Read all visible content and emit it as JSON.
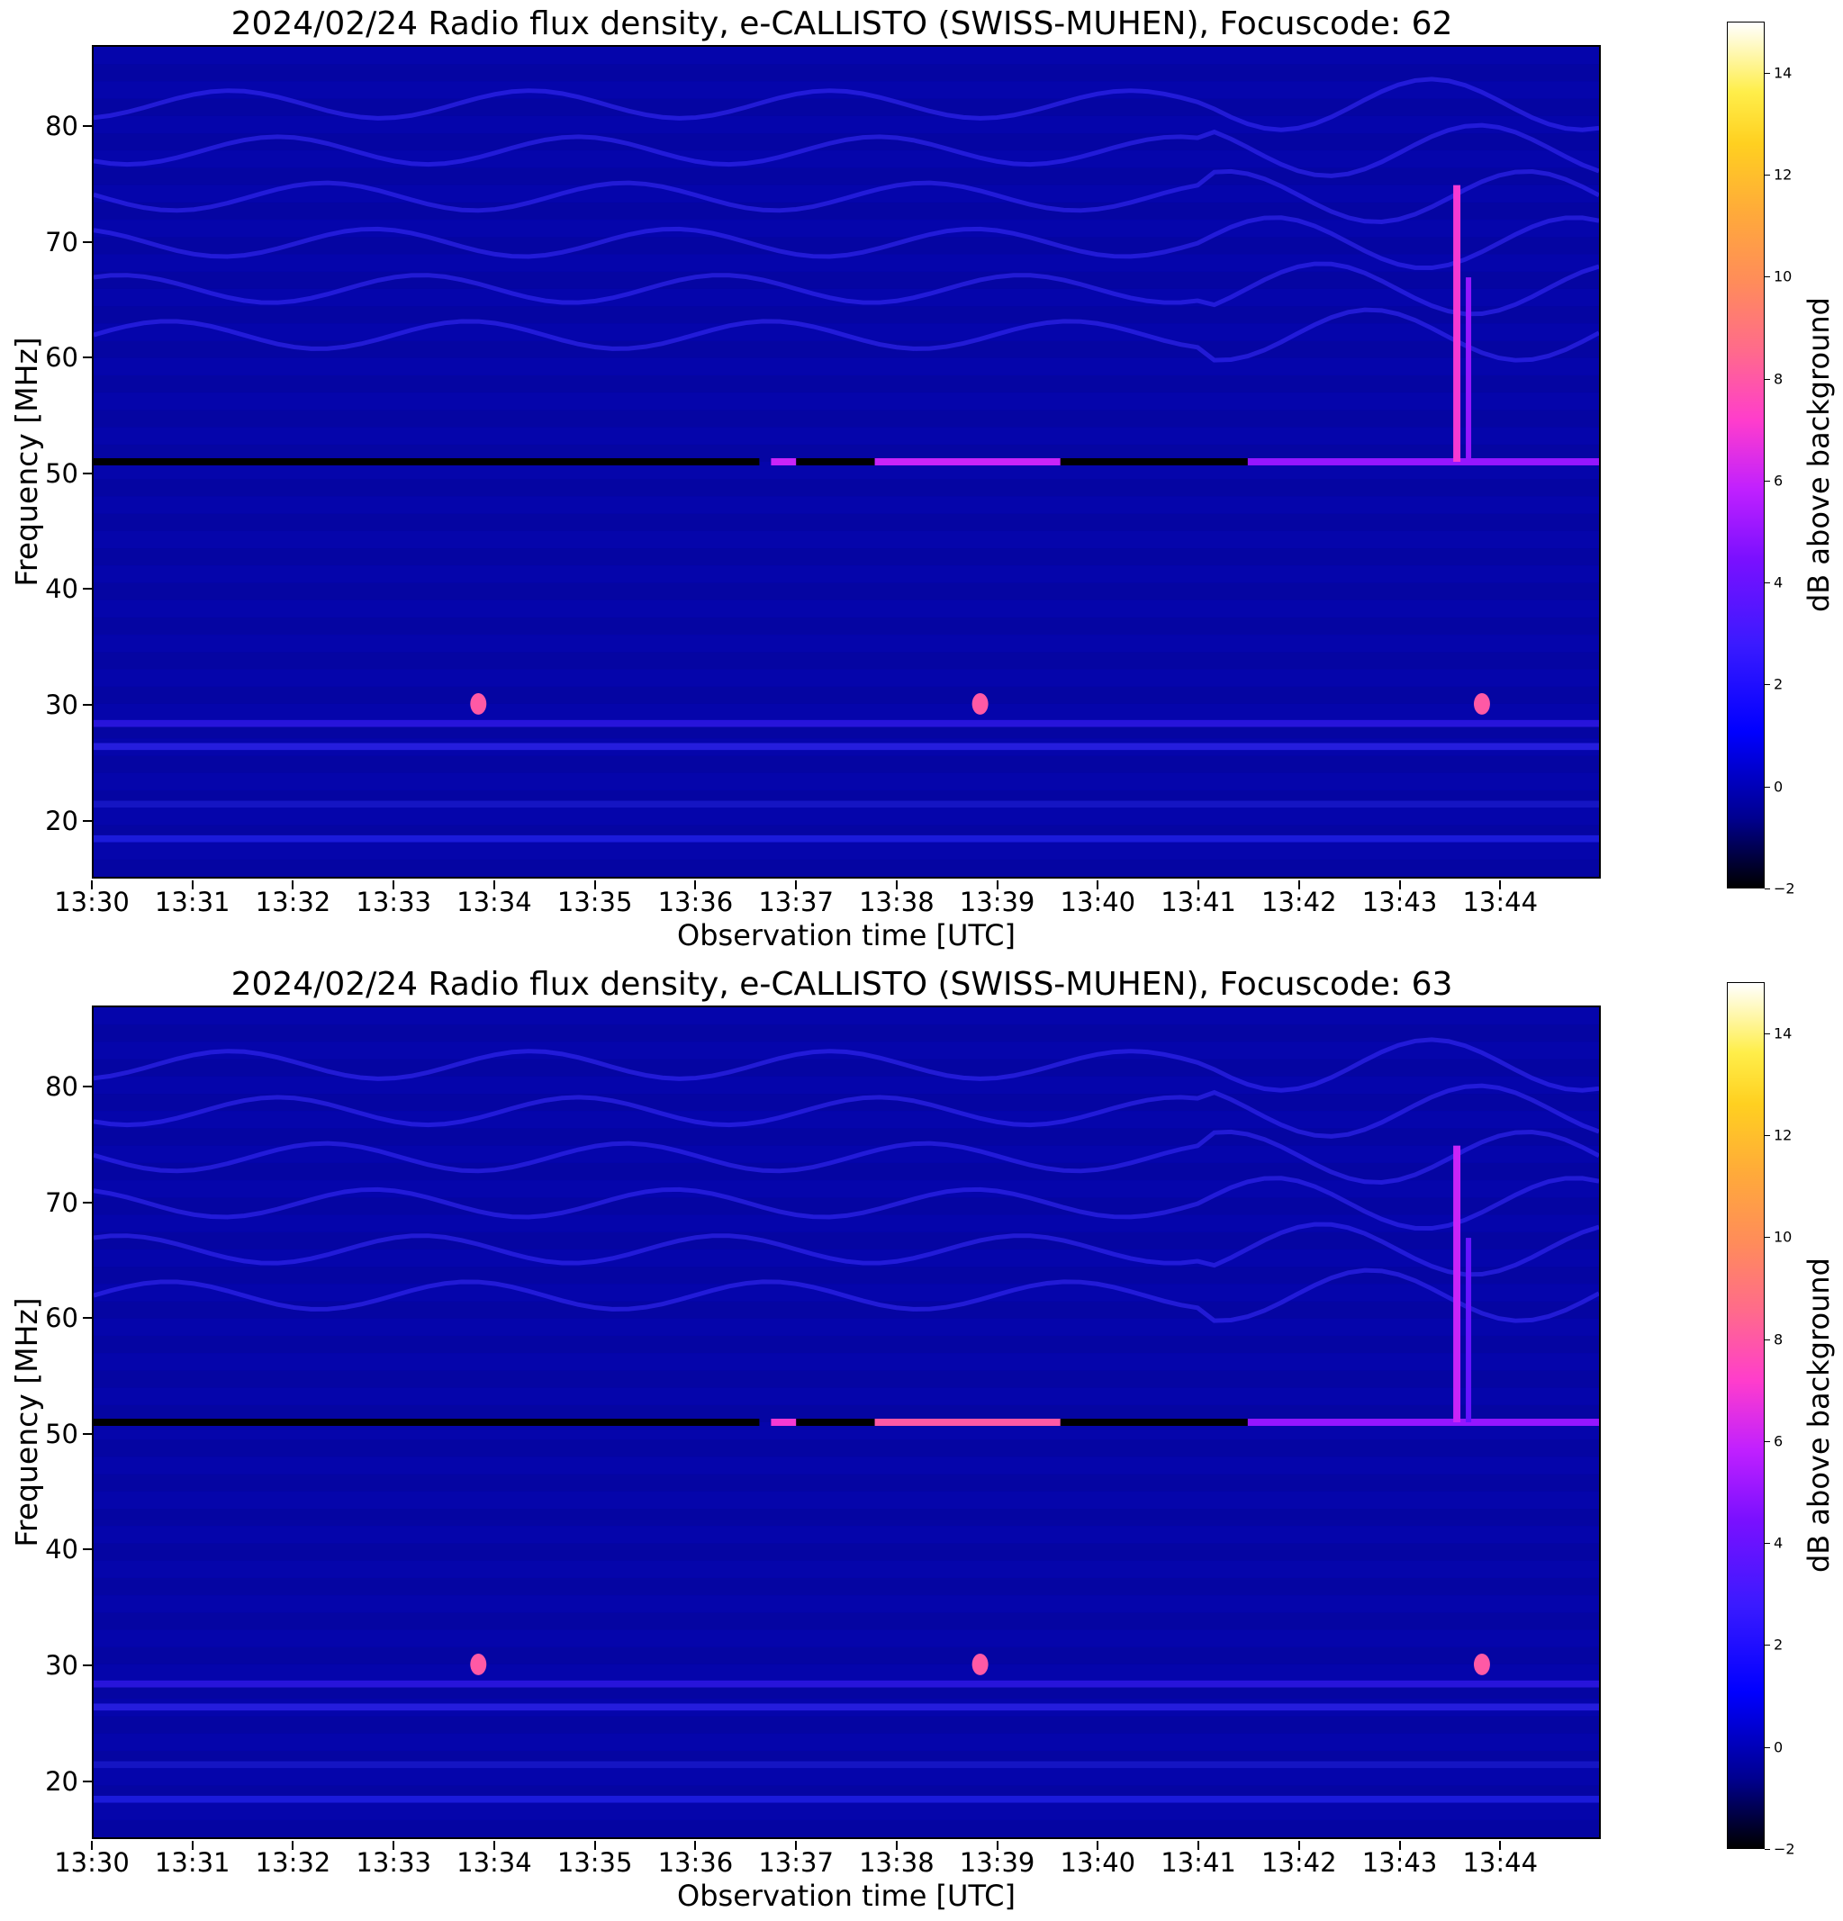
{
  "chart_data": [
    {
      "type": "heatmap",
      "title": "2024/02/24  Radio flux density, e-CALLISTO (SWISS-MUHEN), Focuscode: 62",
      "xlabel": "Observation time [UTC]",
      "ylabel": "Frequency [MHz]",
      "x_ticks": [
        "13:30",
        "13:31",
        "13:32",
        "13:33",
        "13:34",
        "13:35",
        "13:36",
        "13:37",
        "13:38",
        "13:39",
        "13:40",
        "13:41",
        "13:42",
        "13:43",
        "13:44"
      ],
      "xlim": [
        "13:30",
        "13:45"
      ],
      "y_ticks": [
        20,
        30,
        40,
        50,
        60,
        70,
        80
      ],
      "ylim": [
        15,
        87
      ],
      "colorbar": {
        "label": "dB above background",
        "ticks": [
          "−2",
          "0",
          "2",
          "4",
          "6",
          "8",
          "10",
          "12",
          "14"
        ],
        "range": [
          -2,
          15
        ],
        "colormap": "gnuplot2"
      },
      "features": {
        "background_level_db": 0,
        "rfi_line_mhz": 51,
        "rfi_line_segments": [
          {
            "start": "13:30:00",
            "end": "13:36:38",
            "level_db": -2
          },
          {
            "start": "13:36:45",
            "end": "13:37:00",
            "level_db": 6
          },
          {
            "start": "13:37:00",
            "end": "13:37:47",
            "level_db": -2
          },
          {
            "start": "13:37:47",
            "end": "13:39:38",
            "level_db": 6
          },
          {
            "start": "13:39:38",
            "end": "13:41:30",
            "level_db": -2
          },
          {
            "start": "13:41:30",
            "end": "13:45:00",
            "level_db": 5
          }
        ],
        "burst": {
          "time": "13:43:35",
          "freq_range_mhz": [
            51,
            75
          ],
          "level_db": 7
        },
        "bright_spots": [
          {
            "time": "13:33:50",
            "freq_mhz": 30,
            "level_db": 8
          },
          {
            "time": "13:38:50",
            "freq_mhz": 30,
            "level_db": 8
          },
          {
            "time": "13:43:50",
            "freq_mhz": 30,
            "level_db": 8
          }
        ]
      }
    },
    {
      "type": "heatmap",
      "title": "2024/02/24  Radio flux density, e-CALLISTO (SWISS-MUHEN), Focuscode: 63",
      "xlabel": "Observation time [UTC]",
      "ylabel": "Frequency [MHz]",
      "x_ticks": [
        "13:30",
        "13:31",
        "13:32",
        "13:33",
        "13:34",
        "13:35",
        "13:36",
        "13:37",
        "13:38",
        "13:39",
        "13:40",
        "13:41",
        "13:42",
        "13:43",
        "13:44"
      ],
      "xlim": [
        "13:30",
        "13:45"
      ],
      "y_ticks": [
        20,
        30,
        40,
        50,
        60,
        70,
        80
      ],
      "ylim": [
        15,
        87
      ],
      "colorbar": {
        "label": "dB above background",
        "ticks": [
          "−2",
          "0",
          "2",
          "4",
          "6",
          "8",
          "10",
          "12",
          "14"
        ],
        "range": [
          -2,
          15
        ],
        "colormap": "gnuplot2"
      },
      "features": {
        "background_level_db": 0,
        "rfi_line_mhz": 51,
        "rfi_line_segments": [
          {
            "start": "13:30:00",
            "end": "13:36:38",
            "level_db": -2
          },
          {
            "start": "13:36:45",
            "end": "13:37:00",
            "level_db": 7
          },
          {
            "start": "13:37:00",
            "end": "13:37:47",
            "level_db": -2
          },
          {
            "start": "13:37:47",
            "end": "13:39:38",
            "level_db": 8
          },
          {
            "start": "13:39:38",
            "end": "13:41:30",
            "level_db": -2
          },
          {
            "start": "13:41:30",
            "end": "13:45:00",
            "level_db": 5
          }
        ],
        "burst": {
          "time": "13:43:35",
          "freq_range_mhz": [
            51,
            75
          ],
          "level_db": 6
        },
        "bright_spots": [
          {
            "time": "13:33:50",
            "freq_mhz": 30,
            "level_db": 8
          },
          {
            "time": "13:38:50",
            "freq_mhz": 30,
            "level_db": 8
          },
          {
            "time": "13:43:50",
            "freq_mhz": 30,
            "level_db": 8
          }
        ]
      }
    }
  ]
}
